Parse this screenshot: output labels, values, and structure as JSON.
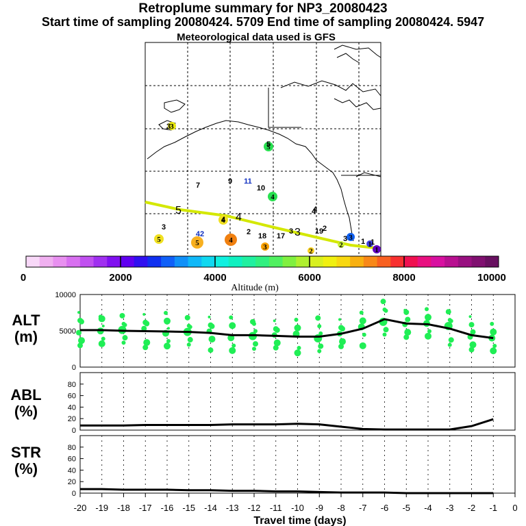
{
  "header": {
    "title": "Retroplume summary for NP3_20080423",
    "sampling": "Start time of sampling 20080424.  5709     End time of sampling 20080424.  5947",
    "met": "Meteorological data used is GFS"
  },
  "map": {
    "track_labels": [
      "5",
      "4",
      "3"
    ],
    "point_labels": [
      "3",
      "3",
      "42",
      "7",
      "9",
      "11",
      "10",
      "5",
      "4",
      "4",
      "2",
      "18",
      "17",
      "3",
      "19",
      "2",
      "4",
      "3",
      "1",
      "1"
    ],
    "circles": [
      {
        "label": "3",
        "color": "#e8e810"
      },
      {
        "label": "5",
        "color": "#28e050"
      },
      {
        "label": "4",
        "color": "#28e050"
      },
      {
        "label": "4",
        "color": "#f0e020"
      },
      {
        "label": "5",
        "color": "#f0e020"
      },
      {
        "label": "5",
        "color": "#f8b020"
      },
      {
        "label": "4",
        "color": "#f08010"
      },
      {
        "label": "3",
        "color": "#f8a000"
      },
      {
        "label": "2",
        "color": "#f8d020"
      },
      {
        "label": "2",
        "color": "#c8f030"
      },
      {
        "label": "3",
        "color": "#1060f0"
      },
      {
        "label": "1",
        "color": "#4040e0"
      },
      {
        "label": "1",
        "color": "#6000c0"
      }
    ]
  },
  "colorbar": {
    "tick_labels": [
      "0",
      "2000",
      "4000",
      "6000",
      "8000",
      "10000"
    ],
    "label": "Altitude (m)",
    "colors": [
      "#f8d8f8",
      "#f0b0f0",
      "#e890f0",
      "#d870f0",
      "#c050f0",
      "#a030f0",
      "#8010f0",
      "#6000f0",
      "#3010f0",
      "#1030f0",
      "#1060f8",
      "#1090f8",
      "#10b8f8",
      "#10d8f0",
      "#10f0e0",
      "#10f0c0",
      "#20f0a0",
      "#30f080",
      "#50f060",
      "#80f040",
      "#b0f030",
      "#d8f020",
      "#f0f010",
      "#f8d810",
      "#f8b010",
      "#f88818",
      "#f86020",
      "#f83030",
      "#f01050",
      "#e81080",
      "#d810a0",
      "#b81090",
      "#981080",
      "#801070",
      "#681060"
    ]
  },
  "chart_data": [
    {
      "type": "line",
      "panel": "ALT",
      "ylabel": "ALT\n(m)",
      "ylabel_lines": [
        "ALT",
        "(m)"
      ],
      "x": [
        -20,
        -19,
        -18,
        -17,
        -16,
        -15,
        -14,
        -13,
        -12,
        -11,
        -10,
        -9,
        -8,
        -7,
        -6,
        -5,
        -4,
        -3,
        -2,
        -1
      ],
      "values": [
        5100,
        5100,
        5000,
        4950,
        4900,
        4850,
        4700,
        4400,
        4400,
        4300,
        4200,
        4200,
        4600,
        5300,
        6600,
        6000,
        5900,
        5300,
        4400,
        4000
      ],
      "yticks": [
        "10000",
        "5000",
        "0"
      ],
      "ylim": [
        0,
        10000
      ],
      "xlim": [
        -20,
        0
      ]
    },
    {
      "type": "line",
      "panel": "ABL",
      "ylabel_lines": [
        "ABL",
        "(%)"
      ],
      "x": [
        -20,
        -19,
        -18,
        -17,
        -16,
        -15,
        -14,
        -13,
        -12,
        -11,
        -10,
        -9,
        -8,
        -7,
        -6,
        -5,
        -4,
        -3,
        -2,
        -1
      ],
      "values": [
        8,
        8,
        8,
        9,
        9,
        9,
        9,
        10,
        10,
        10,
        11,
        10,
        6,
        2,
        1,
        1,
        1,
        1,
        7,
        19
      ],
      "yticks": [
        "80",
        "60",
        "40",
        "20",
        "0"
      ],
      "ylim": [
        0,
        100
      ],
      "xlim": [
        -20,
        0
      ]
    },
    {
      "type": "line",
      "panel": "STR",
      "ylabel_lines": [
        "STR",
        "(%)"
      ],
      "x": [
        -20,
        -19,
        -18,
        -17,
        -16,
        -15,
        -14,
        -13,
        -12,
        -11,
        -10,
        -9,
        -8,
        -7,
        -6,
        -5,
        -4,
        -3,
        -2,
        -1
      ],
      "values": [
        7,
        7,
        6,
        6,
        6,
        5,
        5,
        4,
        4,
        3,
        3,
        2,
        1,
        1,
        1,
        0,
        0,
        0,
        0,
        0
      ],
      "yticks": [
        "80",
        "60",
        "40",
        "20",
        "0"
      ],
      "ylim": [
        0,
        100
      ],
      "xlim": [
        -20,
        0
      ]
    }
  ],
  "xaxis": {
    "ticks": [
      "-20",
      "-19",
      "-18",
      "-17",
      "-16",
      "-15",
      "-14",
      "-13",
      "-12",
      "-11",
      "-10",
      "-9",
      "-8",
      "-7",
      "-6",
      "-5",
      "-4",
      "-3",
      "-2",
      "-1",
      "0"
    ],
    "label": "Travel time (days)"
  }
}
